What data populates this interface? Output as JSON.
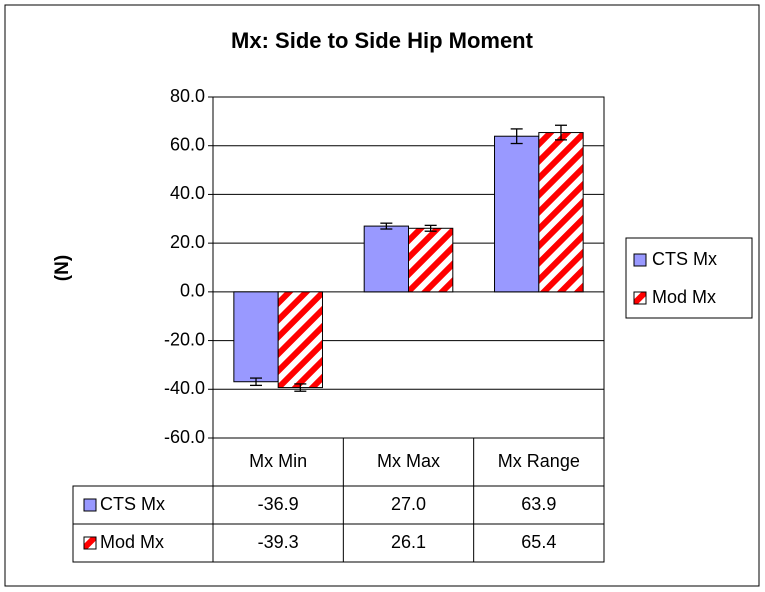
{
  "chart_data": {
    "type": "bar",
    "title": "Mx: Side to Side Hip Moment",
    "y_label": "(N)",
    "categories": [
      "Mx Min",
      "Mx Max",
      "Mx Range"
    ],
    "series": [
      {
        "name": "CTS Mx",
        "color": "#9999ff",
        "pattern": "solid",
        "values": [
          -36.9,
          27,
          63.9
        ],
        "value_labels": [
          "-36.9",
          "27.0",
          "63.9"
        ],
        "errors": [
          1.5,
          1.2,
          3
        ]
      },
      {
        "name": "Mod Mx",
        "color": "#ff0000",
        "pattern": "stripes",
        "values": [
          -39.3,
          26.1,
          65.4
        ],
        "value_labels": [
          "-39.3",
          "26.1",
          "65.4"
        ],
        "errors": [
          1.5,
          1.2,
          3
        ]
      }
    ],
    "ylim": [
      -60,
      80
    ],
    "yticks": [
      {
        "value": -60,
        "label": "-60.0"
      },
      {
        "value": -40,
        "label": "-40.0"
      },
      {
        "value": -20,
        "label": "-20.0"
      },
      {
        "value": 0,
        "label": "0.0"
      },
      {
        "value": 20,
        "label": "20.0"
      },
      {
        "value": 40,
        "label": "40.0"
      },
      {
        "value": 60,
        "label": "60.0"
      },
      {
        "value": 80,
        "label": "80.0"
      }
    ],
    "grid": true,
    "legend": "right",
    "data_table": true
  }
}
